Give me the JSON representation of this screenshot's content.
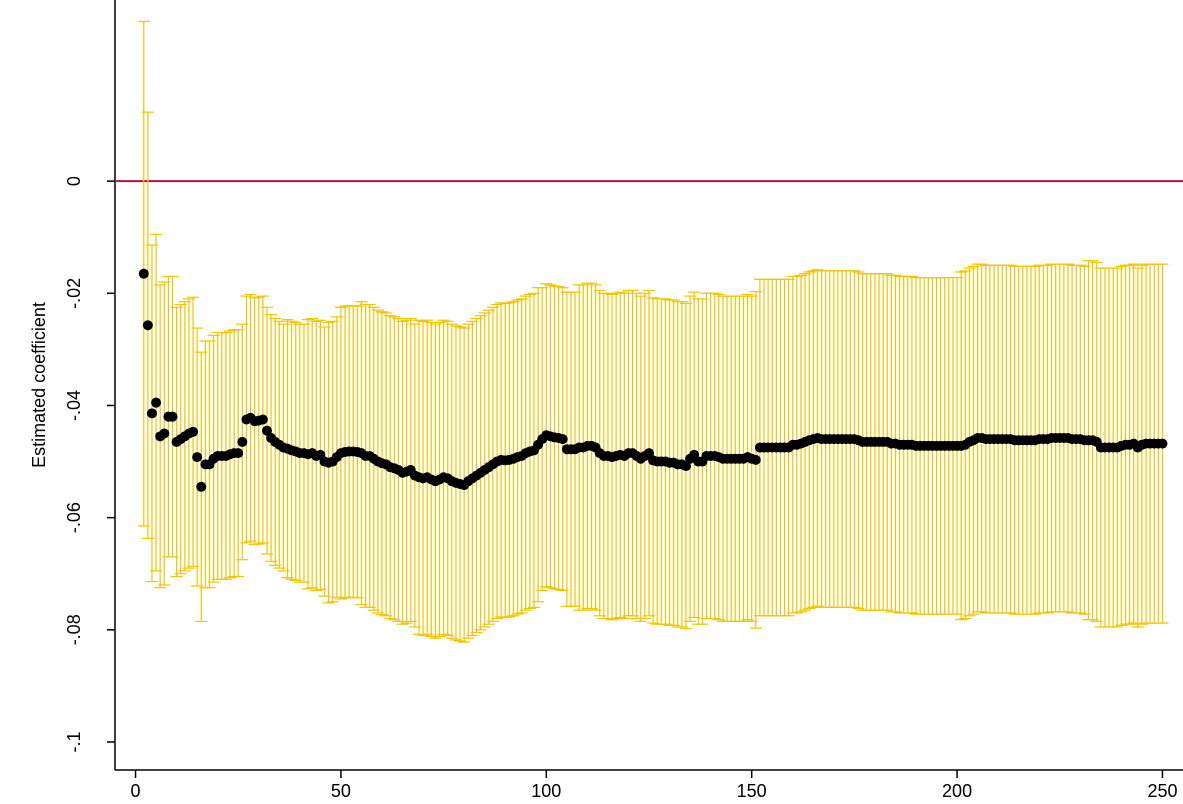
{
  "chart_data": {
    "type": "scatter",
    "y_label": "Estimated coefficient",
    "color": "#000000",
    "error_color": "#f2c500",
    "refline": 0,
    "refline_color": "#b5123d",
    "xlim": [
      -5,
      255
    ],
    "ylim": [
      -0.105,
      0.0323
    ],
    "xticks": [
      0,
      50,
      100,
      150,
      200,
      250
    ],
    "yticks": [
      {
        "value": 0,
        "label": "0"
      },
      {
        "value": -0.02,
        "label": "-.02"
      },
      {
        "value": -0.04,
        "label": "-.04"
      },
      {
        "value": -0.06,
        "label": "-.06"
      },
      {
        "value": -0.08,
        "label": "-.08"
      },
      {
        "value": -0.1,
        "label": "-.1"
      }
    ],
    "x": [
      2,
      3,
      4,
      5,
      6,
      7,
      8,
      9,
      10,
      11,
      12,
      13,
      14,
      15,
      16,
      17,
      18,
      19,
      20,
      21,
      22,
      23,
      24,
      25,
      26,
      27,
      28,
      29,
      30,
      31,
      32,
      33,
      34,
      35,
      36,
      37,
      38,
      39,
      40,
      41,
      42,
      43,
      44,
      45,
      46,
      47,
      48,
      49,
      50,
      51,
      52,
      53,
      54,
      55,
      56,
      57,
      58,
      59,
      60,
      61,
      62,
      63,
      64,
      65,
      66,
      67,
      68,
      69,
      70,
      71,
      72,
      73,
      74,
      75,
      76,
      77,
      78,
      79,
      80,
      81,
      82,
      83,
      84,
      85,
      86,
      87,
      88,
      89,
      90,
      91,
      92,
      93,
      94,
      95,
      96,
      97,
      98,
      99,
      100,
      101,
      102,
      103,
      104,
      105,
      106,
      107,
      108,
      109,
      110,
      111,
      112,
      113,
      114,
      115,
      116,
      117,
      118,
      119,
      120,
      121,
      122,
      123,
      124,
      125,
      126,
      127,
      128,
      129,
      130,
      131,
      132,
      133,
      134,
      135,
      136,
      137,
      138,
      139,
      140,
      141,
      142,
      143,
      144,
      145,
      146,
      147,
      148,
      149,
      150,
      151,
      152,
      153,
      154,
      155,
      156,
      157,
      158,
      159,
      160,
      161,
      162,
      163,
      164,
      165,
      166,
      167,
      168,
      169,
      170,
      171,
      172,
      173,
      174,
      175,
      176,
      177,
      178,
      179,
      180,
      181,
      182,
      183,
      184,
      185,
      186,
      187,
      188,
      189,
      190,
      191,
      192,
      193,
      194,
      195,
      196,
      197,
      198,
      199,
      200,
      201,
      202,
      203,
      204,
      205,
      206,
      207,
      208,
      209,
      210,
      211,
      212,
      213,
      214,
      215,
      216,
      217,
      218,
      219,
      220,
      221,
      222,
      223,
      224,
      225,
      226,
      227,
      228,
      229,
      230,
      231,
      232,
      233,
      234,
      235,
      236,
      237,
      238,
      239,
      240,
      241,
      242,
      243,
      244,
      245,
      246,
      247,
      248,
      249,
      250
    ],
    "values": [
      -0.0165,
      -0.0257,
      -0.0414,
      -0.0395,
      -0.0455,
      -0.045,
      -0.042,
      -0.042,
      -0.0465,
      -0.046,
      -0.0455,
      -0.045,
      -0.0447,
      -0.0492,
      -0.0545,
      -0.0505,
      -0.0505,
      -0.0495,
      -0.049,
      -0.049,
      -0.049,
      -0.0487,
      -0.0485,
      -0.0485,
      -0.0465,
      -0.0425,
      -0.0422,
      -0.0428,
      -0.0427,
      -0.0425,
      -0.0445,
      -0.0458,
      -0.0465,
      -0.047,
      -0.0475,
      -0.0477,
      -0.048,
      -0.0482,
      -0.0485,
      -0.0485,
      -0.0487,
      -0.0485,
      -0.049,
      -0.0488,
      -0.05,
      -0.0502,
      -0.05,
      -0.0492,
      -0.0485,
      -0.0483,
      -0.0482,
      -0.0482,
      -0.0483,
      -0.0485,
      -0.049,
      -0.049,
      -0.0495,
      -0.05,
      -0.0503,
      -0.0505,
      -0.051,
      -0.0512,
      -0.0515,
      -0.052,
      -0.0518,
      -0.0515,
      -0.0525,
      -0.0528,
      -0.053,
      -0.0528,
      -0.0532,
      -0.0535,
      -0.0532,
      -0.0528,
      -0.053,
      -0.0535,
      -0.0538,
      -0.054,
      -0.0542,
      -0.0535,
      -0.053,
      -0.0525,
      -0.052,
      -0.0515,
      -0.051,
      -0.0505,
      -0.05,
      -0.0497,
      -0.0498,
      -0.0497,
      -0.0495,
      -0.0492,
      -0.049,
      -0.0485,
      -0.0482,
      -0.048,
      -0.047,
      -0.046,
      -0.0453,
      -0.0455,
      -0.0457,
      -0.0458,
      -0.046,
      -0.0478,
      -0.0478,
      -0.0478,
      -0.0475,
      -0.0475,
      -0.0472,
      -0.0472,
      -0.0475,
      -0.0485,
      -0.049,
      -0.049,
      -0.0492,
      -0.049,
      -0.0488,
      -0.049,
      -0.0485,
      -0.0485,
      -0.049,
      -0.0495,
      -0.049,
      -0.0485,
      -0.0498,
      -0.05,
      -0.05,
      -0.05,
      -0.0502,
      -0.0502,
      -0.0505,
      -0.0505,
      -0.0508,
      -0.0495,
      -0.0488,
      -0.05,
      -0.05,
      -0.049,
      -0.049,
      -0.049,
      -0.0492,
      -0.0495,
      -0.0495,
      -0.0495,
      -0.0495,
      -0.0495,
      -0.0495,
      -0.0492,
      -0.0495,
      -0.0497,
      -0.0475,
      -0.0475,
      -0.0475,
      -0.0475,
      -0.0475,
      -0.0475,
      -0.0475,
      -0.0475,
      -0.047,
      -0.047,
      -0.0468,
      -0.0465,
      -0.0462,
      -0.046,
      -0.0458,
      -0.046,
      -0.046,
      -0.046,
      -0.046,
      -0.046,
      -0.046,
      -0.046,
      -0.046,
      -0.046,
      -0.0462,
      -0.0465,
      -0.0465,
      -0.0465,
      -0.0465,
      -0.0465,
      -0.0465,
      -0.0465,
      -0.0468,
      -0.0468,
      -0.047,
      -0.047,
      -0.047,
      -0.047,
      -0.0472,
      -0.0472,
      -0.0472,
      -0.0472,
      -0.0472,
      -0.0472,
      -0.0472,
      -0.0472,
      -0.0472,
      -0.0472,
      -0.0472,
      -0.0472,
      -0.047,
      -0.0465,
      -0.0462,
      -0.0458,
      -0.0458,
      -0.046,
      -0.046,
      -0.046,
      -0.046,
      -0.046,
      -0.046,
      -0.046,
      -0.0462,
      -0.0462,
      -0.0462,
      -0.0462,
      -0.0462,
      -0.0462,
      -0.046,
      -0.046,
      -0.046,
      -0.0458,
      -0.0458,
      -0.0458,
      -0.0458,
      -0.0458,
      -0.046,
      -0.046,
      -0.046,
      -0.0462,
      -0.0462,
      -0.0462,
      -0.0465,
      -0.0475,
      -0.0475,
      -0.0475,
      -0.0475,
      -0.0475,
      -0.0472,
      -0.047,
      -0.047,
      -0.0468,
      -0.0475,
      -0.047,
      -0.0468,
      -0.0468,
      -0.0468,
      -0.0468,
      -0.0468
    ],
    "errors": [
      0.045,
      0.038,
      0.03,
      0.03,
      0.027,
      0.027,
      0.025,
      0.025,
      0.024,
      0.024,
      0.024,
      0.024,
      0.024,
      0.023,
      0.024,
      0.022,
      0.022,
      0.022,
      0.022,
      0.022,
      0.022,
      0.022,
      0.022,
      0.022,
      0.021,
      0.022,
      0.022,
      0.022,
      0.022,
      0.022,
      0.022,
      0.022,
      0.022,
      0.022,
      0.022,
      0.023,
      0.023,
      0.023,
      0.023,
      0.023,
      0.024,
      0.024,
      0.024,
      0.024,
      0.024,
      0.025,
      0.025,
      0.025,
      0.026,
      0.026,
      0.026,
      0.026,
      0.026,
      0.027,
      0.027,
      0.027,
      0.027,
      0.027,
      0.027,
      0.027,
      0.027,
      0.027,
      0.027,
      0.027,
      0.027,
      0.027,
      0.027,
      0.028,
      0.028,
      0.028,
      0.028,
      0.028,
      0.028,
      0.028,
      0.028,
      0.028,
      0.028,
      0.028,
      0.028,
      0.028,
      0.028,
      0.028,
      0.028,
      0.028,
      0.028,
      0.028,
      0.028,
      0.028,
      0.028,
      0.028,
      0.028,
      0.028,
      0.028,
      0.028,
      0.028,
      0.028,
      0.028,
      0.027,
      0.027,
      0.027,
      0.027,
      0.027,
      0.027,
      0.028,
      0.028,
      0.028,
      0.029,
      0.029,
      0.029,
      0.029,
      0.029,
      0.029,
      0.029,
      0.029,
      0.029,
      0.029,
      0.029,
      0.029,
      0.029,
      0.029,
      0.029,
      0.029,
      0.029,
      0.029,
      0.029,
      0.029,
      0.029,
      0.029,
      0.029,
      0.029,
      0.029,
      0.029,
      0.029,
      0.029,
      0.029,
      0.029,
      0.029,
      0.029,
      0.029,
      0.029,
      0.029,
      0.029,
      0.029,
      0.029,
      0.029,
      0.029,
      0.029,
      0.029,
      0.029,
      0.03,
      0.03,
      0.03,
      0.03,
      0.03,
      0.03,
      0.03,
      0.03,
      0.03,
      0.03,
      0.03,
      0.03,
      0.03,
      0.03,
      0.03,
      0.03,
      0.03,
      0.03,
      0.03,
      0.03,
      0.03,
      0.03,
      0.03,
      0.03,
      0.03,
      0.03,
      0.03,
      0.03,
      0.03,
      0.03,
      0.03,
      0.03,
      0.03,
      0.03,
      0.03,
      0.03,
      0.03,
      0.03,
      0.03,
      0.03,
      0.03,
      0.03,
      0.03,
      0.03,
      0.03,
      0.03,
      0.03,
      0.03,
      0.03,
      0.03,
      0.031,
      0.031,
      0.031,
      0.031,
      0.031,
      0.031,
      0.031,
      0.031,
      0.031,
      0.031,
      0.031,
      0.031,
      0.031,
      0.031,
      0.031,
      0.031,
      0.031,
      0.031,
      0.031,
      0.031,
      0.031,
      0.031,
      0.031,
      0.031,
      0.031,
      0.031,
      0.031,
      0.031,
      0.031,
      0.031,
      0.031,
      0.032,
      0.032,
      0.032,
      0.032,
      0.032,
      0.032,
      0.032,
      0.032,
      0.032,
      0.032,
      0.032,
      0.032,
      0.032,
      0.032,
      0.032,
      0.032,
      0.032,
      0.032,
      0.032
    ]
  }
}
